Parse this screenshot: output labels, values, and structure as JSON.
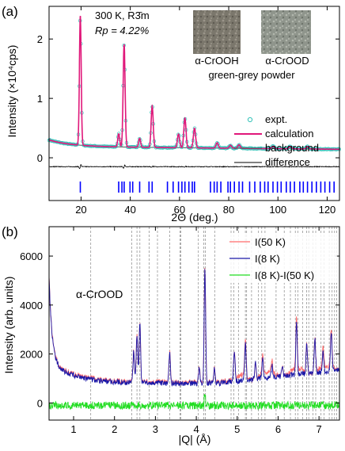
{
  "colors": {
    "expt": "#34c3b9",
    "calc": "#e0187a",
    "background": "#555555",
    "difference": "#000000",
    "ticks": "#0000ff",
    "r50": "#ff6b6b",
    "r8": "#1a18a8",
    "rdiff": "#22dd22",
    "grid": "#888888"
  },
  "chart_data": [
    {
      "type": "line",
      "panel_label": "(a)",
      "xlabel": "2Θ (deg.)",
      "ylabel": "Intensity (×10⁴cps)",
      "xlim": [
        7,
        125
      ],
      "ylim": [
        -0.72,
        2.55
      ],
      "xticks": [
        20,
        40,
        60,
        80,
        100,
        120
      ],
      "yticks": [
        0,
        1,
        2
      ],
      "annotation_line1": "300 K, R3̄m",
      "annotation_line2": "Rp = 4.22%",
      "inset_left_label": "α-CrOOH",
      "inset_right_label": "α-CrOOD",
      "inset_caption": "green-grey powder",
      "legend": [
        "expt.",
        "calculation",
        "background",
        "difference"
      ],
      "background_level": 0.19,
      "peaks": [
        {
          "x": 19.7,
          "h": 2.18
        },
        {
          "x": 35.3,
          "h": 0.22
        },
        {
          "x": 37.5,
          "h": 1.73
        },
        {
          "x": 43.8,
          "h": 0.15
        },
        {
          "x": 48.9,
          "h": 0.7
        },
        {
          "x": 59.6,
          "h": 0.23
        },
        {
          "x": 62.2,
          "h": 0.5
        },
        {
          "x": 66.1,
          "h": 0.33
        },
        {
          "x": 75.3,
          "h": 0.09
        },
        {
          "x": 80.7,
          "h": 0.05
        },
        {
          "x": 84.2,
          "h": 0.06
        },
        {
          "x": 98.0,
          "h": 0.04
        },
        {
          "x": 105.0,
          "h": 0.04
        },
        {
          "x": 112.0,
          "h": 0.04
        }
      ],
      "bragg_positions": [
        19.7,
        35.3,
        36.6,
        37.5,
        39.9,
        41.0,
        43.8,
        47.6,
        48.9,
        55.1,
        57.4,
        59.6,
        61.0,
        62.2,
        63.8,
        65.2,
        66.1,
        72.6,
        74.1,
        75.3,
        76.8,
        79.7,
        80.7,
        82.3,
        84.2,
        85.6,
        88.5,
        90.6,
        92.8,
        94.6,
        96.0,
        98.0,
        99.8,
        101.3,
        103.4,
        105.0,
        106.7,
        108.9,
        110.3,
        112.0,
        113.8,
        115.6,
        117.4,
        119.1,
        121.0,
        122.8
      ]
    },
    {
      "type": "line",
      "panel_label": "(b)",
      "xlabel": "|Q| (Å)",
      "ylabel": "Intensity (arb. units)",
      "xlim": [
        0.4,
        7.5
      ],
      "ylim": [
        -700,
        7200
      ],
      "xticks": [
        1,
        2,
        3,
        4,
        5,
        6,
        7
      ],
      "yticks": [
        0,
        2000,
        4000,
        6000
      ],
      "sample_label": "α-CrOOD",
      "series": [
        {
          "name": "I(50 K)"
        },
        {
          "name": "I(8 K)"
        },
        {
          "name": "I(8 K)-I(50 K)"
        }
      ],
      "peaks_8K": [
        {
          "x": 2.47,
          "h": 1300
        },
        {
          "x": 2.55,
          "h": 2000
        },
        {
          "x": 2.62,
          "h": 2400
        },
        {
          "x": 3.35,
          "h": 1200
        },
        {
          "x": 4.07,
          "h": 600
        },
        {
          "x": 4.21,
          "h": 4600
        },
        {
          "x": 4.44,
          "h": 600
        },
        {
          "x": 4.93,
          "h": 1200
        },
        {
          "x": 5.2,
          "h": 1500
        },
        {
          "x": 5.45,
          "h": 700
        },
        {
          "x": 5.62,
          "h": 800
        },
        {
          "x": 5.85,
          "h": 500
        },
        {
          "x": 6.1,
          "h": 400
        },
        {
          "x": 6.45,
          "h": 2200
        },
        {
          "x": 6.7,
          "h": 1200
        },
        {
          "x": 6.9,
          "h": 1400
        },
        {
          "x": 7.1,
          "h": 800
        },
        {
          "x": 7.3,
          "h": 1600
        }
      ],
      "reflection_positions": [
        1.42,
        2.42,
        2.55,
        2.62,
        2.85,
        3.05,
        3.35,
        3.6,
        3.62,
        4.05,
        4.18,
        4.22,
        4.45,
        4.85,
        4.92,
        5.03,
        5.2,
        5.23,
        5.35,
        5.52,
        5.6,
        5.68,
        5.95,
        6.15,
        6.3,
        6.42,
        6.48,
        6.6,
        6.7,
        6.75,
        6.85,
        6.92,
        7.05,
        7.12,
        7.25,
        7.32,
        7.38,
        7.43
      ]
    }
  ]
}
